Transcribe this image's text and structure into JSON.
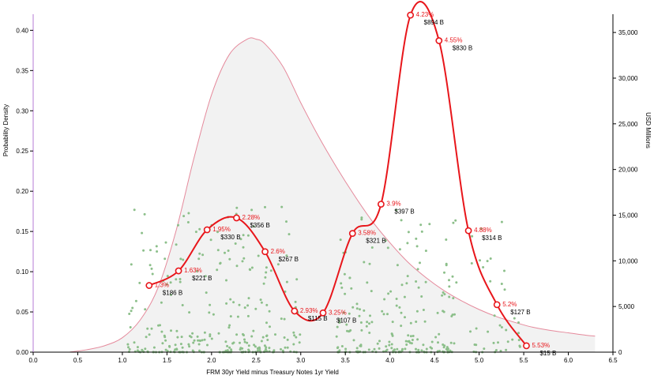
{
  "colors": {
    "density_fill": "#f2f2f2",
    "density_stroke": "#e58a9c",
    "scatter": "#8cbf8a",
    "line": "#e8161b",
    "axis": "#000000",
    "left_axis_accent": "#b57bd6"
  },
  "chart_data": {
    "type": "line",
    "title": "",
    "xlabel": "FRM 30yr Yield minus Treasury Notes 1yr Yield",
    "ylabel_left": "Probability Density",
    "ylabel_right": "USD Millions",
    "xlim": [
      0,
      6.5
    ],
    "ylim_left": [
      0,
      0.42
    ],
    "ylim_right": [
      0,
      37000
    ],
    "x_ticks": [
      "0.0",
      "0.5",
      "1.0",
      "1.5",
      "2.0",
      "2.5",
      "3.0",
      "3.5",
      "4.0",
      "4.5",
      "5.0",
      "5.5",
      "6.0",
      "6.5"
    ],
    "y_left_ticks": [
      "0.00",
      "0.05",
      "0.10",
      "0.15",
      "0.20",
      "0.25",
      "0.30",
      "0.35",
      "0.40"
    ],
    "y_right_ticks": [
      "0",
      "5,000",
      "10,000",
      "15,000",
      "20,000",
      "25,000",
      "30,000",
      "35,000"
    ],
    "density": {
      "x": [
        0.4,
        0.6,
        0.8,
        1.0,
        1.2,
        1.4,
        1.6,
        1.8,
        2.0,
        2.2,
        2.4,
        2.5,
        2.6,
        2.8,
        3.0,
        3.2,
        3.4,
        3.6,
        3.8,
        4.0,
        4.2,
        4.4,
        4.6,
        4.8,
        5.0,
        5.2,
        5.4,
        5.6,
        5.8,
        6.0,
        6.2,
        6.3
      ],
      "y": [
        0.0,
        0.003,
        0.008,
        0.018,
        0.04,
        0.08,
        0.15,
        0.24,
        0.32,
        0.37,
        0.389,
        0.389,
        0.383,
        0.355,
        0.31,
        0.268,
        0.23,
        0.195,
        0.163,
        0.136,
        0.112,
        0.093,
        0.077,
        0.064,
        0.053,
        0.044,
        0.037,
        0.031,
        0.027,
        0.024,
        0.021,
        0.02
      ]
    },
    "series": [
      {
        "x": [
          1.3,
          1.63,
          1.95,
          2.28,
          2.6,
          2.93,
          3.25,
          3.58,
          3.9,
          4.23,
          4.55,
          4.88,
          5.2,
          5.53
        ],
        "values": [
          7300,
          8900,
          13400,
          14700,
          11000,
          4500,
          4300,
          13000,
          16200,
          36900,
          34100,
          13300,
          5200,
          700
        ],
        "point_labels": [
          "1.3%",
          "1.63%",
          "1.95%",
          "2.28%",
          "2.6%",
          "2.93%",
          "3.25%",
          "3.58%",
          "3.9%",
          "4.23%",
          "4.55%",
          "4.88%",
          "5.2%",
          "5.53%"
        ],
        "data_labels": [
          "$186 B",
          "$221 B",
          "$330 B",
          "$356 B",
          "$267 B",
          "$115 B",
          "$107 B",
          "$321 B",
          "$397 B",
          "$894 B",
          "$830 B",
          "$314 B",
          "$127 B",
          "$15 B"
        ]
      }
    ],
    "scatter": {
      "note_free": true
    },
    "grid": false
  }
}
